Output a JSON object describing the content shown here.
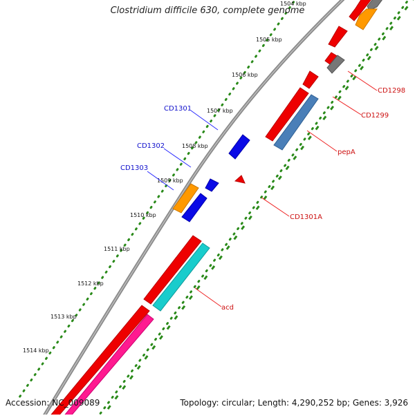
{
  "title": "Clostridium difficile 630, complete genome",
  "footer": {
    "accession": "Accession: NC_009089",
    "stats": "Topology: circular; Length: 4,290,252 bp; Genes: 3,926"
  },
  "colors": {
    "backbone": "#888888",
    "tick_dots": "#2a8a1a",
    "label_blue": "#1010cc",
    "label_red": "#cc1010",
    "leader_blue": "#2a2aff",
    "leader_red": "#ee2222"
  },
  "ticks": [
    "1504 kbp",
    "1505 kbp",
    "1506 kbp",
    "1507 kbp",
    "1508 kbp",
    "1509 kbp",
    "1510 kbp",
    "1511 kbp",
    "1512 kbp",
    "1513 kbp",
    "1514 kbp"
  ],
  "gene_labels": [
    {
      "text": "CD1298",
      "color": "#cc1010"
    },
    {
      "text": "CD1299",
      "color": "#cc1010"
    },
    {
      "text": "pepA",
      "color": "#cc1010"
    },
    {
      "text": "CD1301",
      "color": "#1010cc"
    },
    {
      "text": "CD1302",
      "color": "#1010cc"
    },
    {
      "text": "CD1303",
      "color": "#1010cc"
    },
    {
      "text": "CD1301A",
      "color": "#cc1010"
    },
    {
      "text": "acd",
      "color": "#cc1010"
    }
  ]
}
